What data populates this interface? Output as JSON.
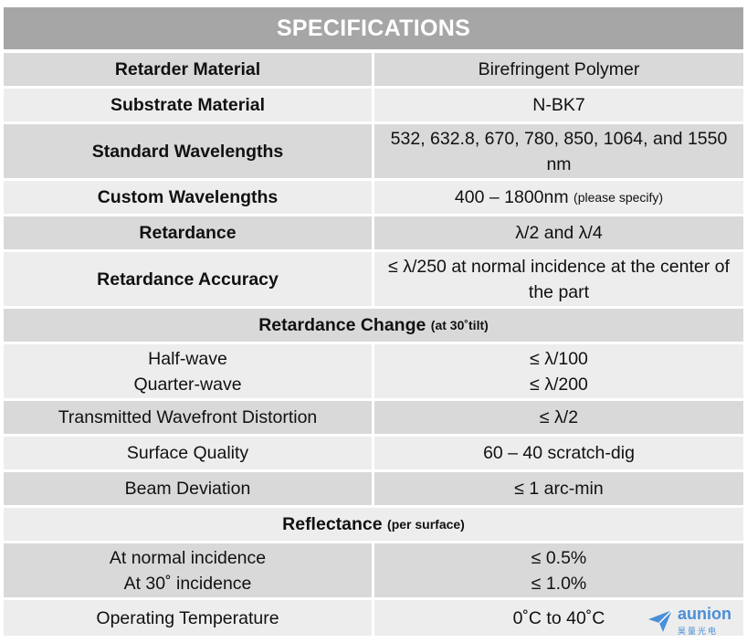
{
  "title": "SPECIFICATIONS",
  "rows": {
    "r0": {
      "label": "Retarder Material",
      "value": "Birefringent Polymer"
    },
    "r1": {
      "label": "Substrate Material",
      "value": "N-BK7"
    },
    "r2": {
      "label": "Standard Wavelengths",
      "value": "532, 632.8, 670, 780, 850, 1064, and 1550 nm"
    },
    "r3": {
      "label": "Custom Wavelengths",
      "value": "400 – 1800nm",
      "note": "(please specify)"
    },
    "r4": {
      "label": "Retardance",
      "value": "λ/2 and λ/4"
    },
    "r5": {
      "label": "Retardance Accuracy",
      "value": "≤ λ/250 at normal incidence at the center of the part"
    },
    "r6": {
      "heading": "Retardance Change",
      "note": "(at 30˚tilt)"
    },
    "r7": {
      "label1": "Half-wave",
      "label2": "Quarter-wave",
      "value1": "≤ λ/100",
      "value2": "≤ λ/200"
    },
    "r8": {
      "label": "Transmitted Wavefront Distortion",
      "value": "≤ λ/2"
    },
    "r9": {
      "label": "Surface Quality",
      "value": "60 – 40 scratch-dig"
    },
    "r10": {
      "label": "Beam Deviation",
      "value": "≤ 1 arc-min"
    },
    "r11": {
      "heading": "Reflectance",
      "note": "(per surface)"
    },
    "r12": {
      "label1": "At normal incidence",
      "label2": "At 30˚ incidence",
      "value1": "≤ 0.5%",
      "value2": "≤ 1.0%"
    },
    "r13": {
      "label": "Operating Temperature",
      "value": "0˚C to 40˚C"
    }
  },
  "logo": {
    "name": "aunion",
    "sub": "昊量光电"
  },
  "colors": {
    "title_bg": "#a6a6a6",
    "row_dark": "#d9d9d9",
    "row_light": "#ededed",
    "logo": "#4a8fd8"
  }
}
